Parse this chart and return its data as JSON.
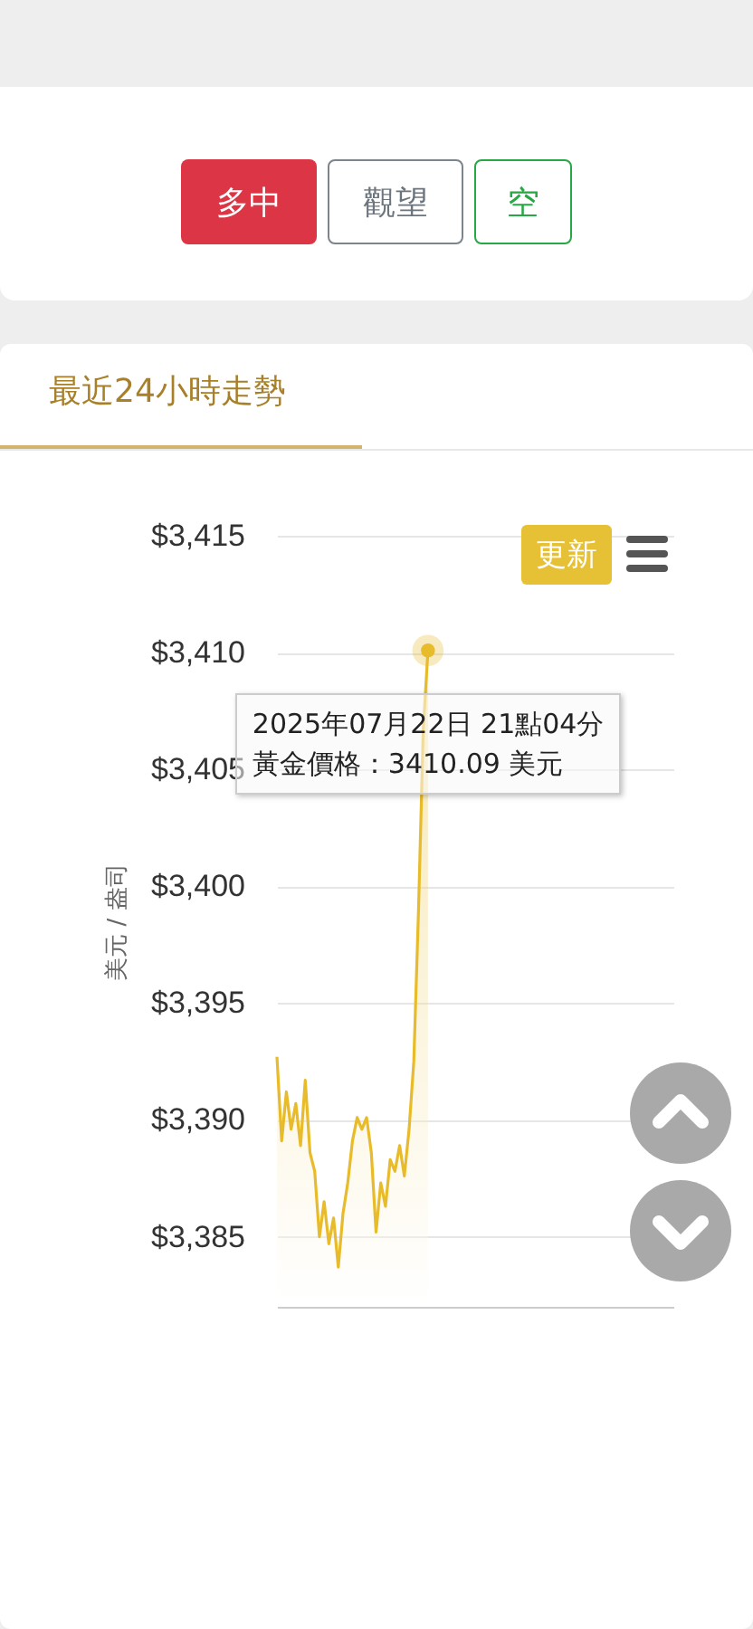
{
  "chart_data": {
    "type": "area",
    "title": "最近24小時走勢",
    "ylabel": "美元 / 盎司",
    "categories": [
      null,
      null,
      null,
      null,
      null,
      null,
      null,
      null,
      null,
      null,
      null,
      null,
      null,
      null,
      null,
      null,
      null,
      null,
      null,
      null,
      null,
      null,
      null,
      null,
      null,
      null,
      null,
      null,
      null,
      null,
      null,
      null,
      null,
      null,
      null,
      null,
      null,
      null,
      null,
      null,
      null,
      null,
      null,
      null,
      null,
      null,
      null,
      null,
      null,
      null,
      null,
      null,
      null,
      null,
      null,
      null,
      null,
      null,
      null,
      null,
      null,
      null,
      null,
      null,
      null,
      null,
      null,
      null,
      null,
      null,
      null,
      null,
      null,
      null,
      null,
      null,
      null,
      null,
      null,
      null,
      null,
      null,
      null,
      null,
      null
    ],
    "series": [
      {
        "color": "#e8bb2a",
        "values": [
          3392.7,
          3389.1,
          3391.2,
          3389.6,
          3390.7,
          3388.9,
          3391.7,
          3388.6,
          3387.8,
          3385.0,
          3386.5,
          3384.7,
          3385.8,
          3383.7,
          3386.0,
          3387.3,
          3389.1,
          3390.1,
          3389.6,
          3390.1,
          3388.6,
          3385.2,
          3387.3,
          3386.3,
          3388.3,
          3387.8,
          3388.9,
          3387.6,
          3389.6,
          3392.5,
          3399.0,
          3406.7,
          3410.09,
          null,
          null,
          null,
          null,
          null,
          null,
          null,
          null,
          null,
          null,
          null,
          null,
          null,
          null,
          null,
          null,
          null,
          null,
          null,
          null,
          null,
          null,
          null,
          null,
          null,
          null,
          null,
          null,
          null,
          null,
          null,
          null,
          null,
          null,
          null,
          null,
          null,
          null,
          null,
          null,
          null,
          null,
          null,
          null,
          null,
          null,
          null,
          null,
          null,
          null,
          null,
          null
        ]
      }
    ],
    "ylim": [
      3382,
      3415
    ],
    "yticks": [
      {
        "value": 3385,
        "label": "$3,385"
      },
      {
        "value": 3390,
        "label": "$3,390"
      },
      {
        "value": 3395,
        "label": "$3,395"
      },
      {
        "value": 3400,
        "label": "$3,400"
      },
      {
        "value": 3405,
        "label": "$3,405"
      },
      {
        "value": 3410,
        "label": "$3,410"
      },
      {
        "value": 3415,
        "label": "$3,415"
      }
    ],
    "grid": "y",
    "marker": "none",
    "annotations": [
      "多中",
      "觀望",
      "空",
      "更新",
      {
        "text": "2025年07月22日 21點04分",
        "y": 3410.09
      },
      "黃金價格：3410.09 美元"
    ]
  }
}
